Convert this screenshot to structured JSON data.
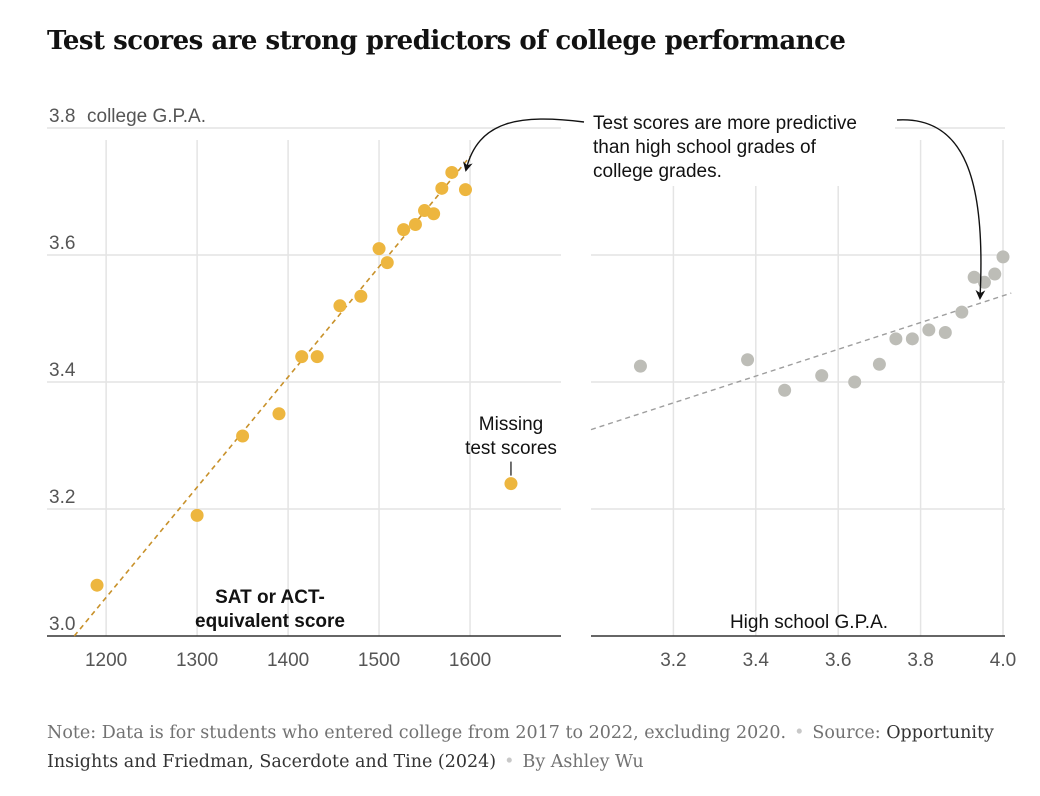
{
  "title": "Test scores are strong predictors of college performance",
  "colors": {
    "test": "#EDB63F",
    "hs": "#BDBDB7",
    "grid": "#E4E4E4",
    "axis": "#333333"
  },
  "chart_data": [
    {
      "type": "scatter",
      "xlabel": "SAT or ACT-equivalent score",
      "xlabel_lines": [
        "SAT or ACT-",
        "equivalent score"
      ],
      "ylabel": "college G.P.A.",
      "xlim": [
        1135,
        1700
      ],
      "ylim": [
        3.0,
        3.8
      ],
      "xticks": [
        1200,
        1300,
        1400,
        1500,
        1600
      ],
      "yticks": [
        3.0,
        3.2,
        3.4,
        3.6,
        3.8
      ],
      "yticks_labels": [
        "3.0",
        "3.2",
        "3.4",
        "3.6",
        "3.8"
      ],
      "points": [
        {
          "x": 1190,
          "y": 3.08
        },
        {
          "x": 1300,
          "y": 3.19
        },
        {
          "x": 1350,
          "y": 3.315
        },
        {
          "x": 1390,
          "y": 3.35
        },
        {
          "x": 1415,
          "y": 3.44
        },
        {
          "x": 1432,
          "y": 3.44
        },
        {
          "x": 1457,
          "y": 3.52
        },
        {
          "x": 1480,
          "y": 3.535
        },
        {
          "x": 1500,
          "y": 3.61
        },
        {
          "x": 1509,
          "y": 3.588
        },
        {
          "x": 1527,
          "y": 3.64
        },
        {
          "x": 1540,
          "y": 3.648
        },
        {
          "x": 1550,
          "y": 3.67
        },
        {
          "x": 1560,
          "y": 3.665
        },
        {
          "x": 1569,
          "y": 3.705
        },
        {
          "x": 1580,
          "y": 3.73
        },
        {
          "x": 1595,
          "y": 3.703
        }
      ],
      "outlier": {
        "x": 1645,
        "y": 3.24,
        "label_lines": [
          "Missing",
          "test scores"
        ]
      },
      "trend": [
        {
          "x": 1165,
          "y": 3.0
        },
        {
          "x": 1600,
          "y": 3.755
        }
      ]
    },
    {
      "type": "scatter",
      "xlabel": "High school G.P.A.",
      "xlim": [
        3.0,
        4.04
      ],
      "ylim": [
        3.0,
        3.8
      ],
      "xticks": [
        3.2,
        3.4,
        3.6,
        3.8,
        4.0
      ],
      "xticks_labels": [
        "3.2",
        "3.4",
        "3.6",
        "3.8",
        "4.0"
      ],
      "yticks": [
        3.0,
        3.2,
        3.4,
        3.6,
        3.8
      ],
      "points": [
        {
          "x": 3.12,
          "y": 3.425
        },
        {
          "x": 3.38,
          "y": 3.435
        },
        {
          "x": 3.47,
          "y": 3.387
        },
        {
          "x": 3.56,
          "y": 3.41
        },
        {
          "x": 3.64,
          "y": 3.4
        },
        {
          "x": 3.7,
          "y": 3.428
        },
        {
          "x": 3.74,
          "y": 3.468
        },
        {
          "x": 3.78,
          "y": 3.468
        },
        {
          "x": 3.82,
          "y": 3.482
        },
        {
          "x": 3.86,
          "y": 3.478
        },
        {
          "x": 3.9,
          "y": 3.51
        },
        {
          "x": 3.93,
          "y": 3.565
        },
        {
          "x": 3.955,
          "y": 3.557
        },
        {
          "x": 3.98,
          "y": 3.57
        },
        {
          "x": 4.0,
          "y": 3.597
        }
      ],
      "trend": [
        {
          "x": 3.0,
          "y": 3.325
        },
        {
          "x": 4.02,
          "y": 3.54
        }
      ]
    }
  ],
  "annotation": {
    "lines": [
      "Test scores are more predictive",
      "than high school grades of",
      "college grades."
    ]
  },
  "note": {
    "note_text": "Note: Data is for students who entered college from 2017 to 2022, excluding 2020.",
    "source_label": "Source:",
    "source_text": "Opportunity Insights and Friedman, Sacerdote and Tine (2024)",
    "byline": "By Ashley Wu",
    "separator": "•"
  }
}
